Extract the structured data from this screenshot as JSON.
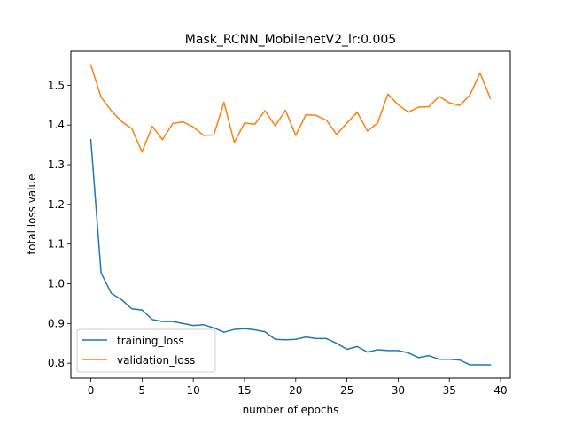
{
  "chart_data": {
    "type": "line",
    "title": "Mask_RCNN_MobilenetV2_lr:0.005",
    "xlabel": "number of epochs",
    "ylabel": "total loss value",
    "xlim": [
      -1.95,
      40.95
    ],
    "ylim": [
      0.7625,
      1.5855
    ],
    "xticks": [
      0,
      5,
      10,
      15,
      20,
      25,
      30,
      35,
      40
    ],
    "yticks": [
      0.8,
      0.9,
      1.0,
      1.1,
      1.2,
      1.3,
      1.4,
      1.5
    ],
    "xtick_labels": [
      "0",
      "5",
      "10",
      "15",
      "20",
      "25",
      "30",
      "35",
      "40"
    ],
    "ytick_labels": [
      "0.8",
      "0.9",
      "1.0",
      "1.1",
      "1.2",
      "1.3",
      "1.4",
      "1.5"
    ],
    "grid": false,
    "legend_position": "lower-left",
    "x": [
      0,
      1,
      2,
      3,
      4,
      5,
      6,
      7,
      8,
      9,
      10,
      11,
      12,
      13,
      14,
      15,
      16,
      17,
      18,
      19,
      20,
      21,
      22,
      23,
      24,
      25,
      26,
      27,
      28,
      29,
      30,
      31,
      32,
      33,
      34,
      35,
      36,
      37,
      38,
      39
    ],
    "series": [
      {
        "name": "training_loss",
        "color": "#1f77b4",
        "values": [
          1.363,
          1.027,
          0.976,
          0.96,
          0.937,
          0.934,
          0.91,
          0.905,
          0.905,
          0.9,
          0.895,
          0.897,
          0.889,
          0.878,
          0.885,
          0.887,
          0.884,
          0.879,
          0.86,
          0.859,
          0.86,
          0.866,
          0.862,
          0.862,
          0.85,
          0.835,
          0.842,
          0.828,
          0.834,
          0.832,
          0.832,
          0.826,
          0.814,
          0.819,
          0.81,
          0.81,
          0.808,
          0.796,
          0.796,
          0.796
        ]
      },
      {
        "name": "validation_loss",
        "color": "#ff7f0e",
        "values": [
          1.551,
          1.47,
          1.436,
          1.409,
          1.391,
          1.332,
          1.397,
          1.363,
          1.404,
          1.408,
          1.395,
          1.374,
          1.375,
          1.457,
          1.356,
          1.405,
          1.402,
          1.436,
          1.398,
          1.437,
          1.374,
          1.426,
          1.424,
          1.412,
          1.376,
          1.405,
          1.432,
          1.385,
          1.405,
          1.478,
          1.451,
          1.432,
          1.445,
          1.446,
          1.472,
          1.456,
          1.449,
          1.475,
          1.531,
          1.467
        ]
      }
    ]
  }
}
